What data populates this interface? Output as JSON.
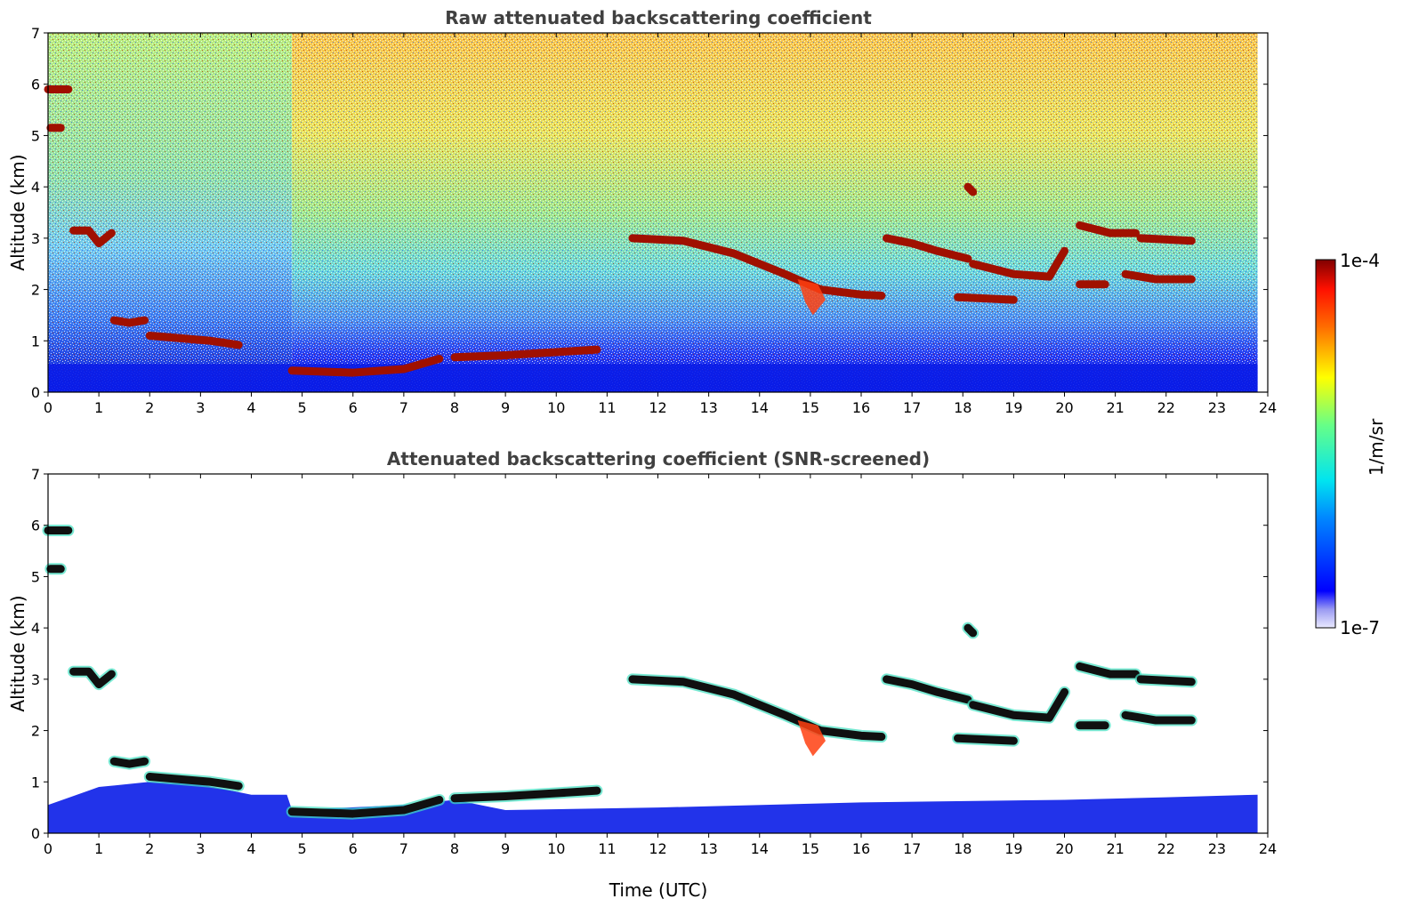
{
  "chart_data": [
    {
      "type": "heatmap",
      "title": "Raw attenuated backscattering coefficient",
      "xlabel": "",
      "ylabel": "Altitude (km)",
      "xlim": [
        0,
        24
      ],
      "ylim": [
        0,
        7
      ],
      "xticks": [
        0,
        1,
        2,
        3,
        4,
        5,
        6,
        7,
        8,
        9,
        10,
        11,
        12,
        13,
        14,
        15,
        16,
        17,
        18,
        19,
        20,
        21,
        22,
        23,
        24
      ],
      "yticks": [
        0,
        1,
        2,
        3,
        4,
        5,
        6,
        7
      ],
      "data_end_time": 23.8,
      "cloud_layers": [
        {
          "x": [
            0.0,
            0.4
          ],
          "y": [
            5.9,
            5.9
          ]
        },
        {
          "x": [
            0.05,
            0.25
          ],
          "y": [
            5.15,
            5.15
          ]
        },
        {
          "x": [
            0.5,
            0.8,
            1.0,
            1.25
          ],
          "y": [
            3.15,
            3.15,
            2.9,
            3.1
          ]
        },
        {
          "x": [
            1.3,
            1.6,
            1.9
          ],
          "y": [
            1.4,
            1.35,
            1.4
          ]
        },
        {
          "x": [
            2.0,
            2.6,
            3.2,
            3.75
          ],
          "y": [
            1.1,
            1.05,
            1.0,
            0.92
          ]
        },
        {
          "x": [
            4.8,
            6.0,
            7.0,
            7.7
          ],
          "y": [
            0.42,
            0.38,
            0.45,
            0.65
          ]
        },
        {
          "x": [
            8.0,
            9.0,
            10.0,
            10.8
          ],
          "y": [
            0.68,
            0.72,
            0.78,
            0.83
          ]
        },
        {
          "x": [
            11.5,
            12.5,
            13.5,
            14.5,
            15.2,
            16.0,
            16.4
          ],
          "y": [
            3.0,
            2.95,
            2.7,
            2.3,
            2.0,
            1.9,
            1.88
          ]
        },
        {
          "x": [
            16.5,
            17.0,
            17.5,
            18.1
          ],
          "y": [
            3.0,
            2.9,
            2.75,
            2.6
          ]
        },
        {
          "x": [
            18.2,
            19.0,
            19.7,
            20.0
          ],
          "y": [
            2.5,
            2.3,
            2.25,
            2.75
          ]
        },
        {
          "x": [
            20.3,
            20.9,
            21.4
          ],
          "y": [
            3.25,
            3.1,
            3.1
          ]
        },
        {
          "x": [
            21.5,
            22.5
          ],
          "y": [
            3.0,
            2.95
          ]
        },
        {
          "x": [
            21.2,
            21.8,
            22.5
          ],
          "y": [
            2.3,
            2.2,
            2.2
          ]
        },
        {
          "x": [
            20.3,
            20.8
          ],
          "y": [
            2.1,
            2.1
          ]
        },
        {
          "x": [
            17.9,
            19.0
          ],
          "y": [
            1.85,
            1.8
          ]
        },
        {
          "x": [
            18.1,
            18.2
          ],
          "y": [
            4.0,
            3.9
          ]
        }
      ]
    },
    {
      "type": "heatmap",
      "title": "Attenuated backscattering coefficient (SNR-screened)",
      "xlabel": "Time (UTC)",
      "ylabel": "Altitude (km)",
      "xlim": [
        0,
        24
      ],
      "ylim": [
        0,
        7
      ],
      "xticks": [
        0,
        1,
        2,
        3,
        4,
        5,
        6,
        7,
        8,
        9,
        10,
        11,
        12,
        13,
        14,
        15,
        16,
        17,
        18,
        19,
        20,
        21,
        22,
        23,
        24
      ],
      "yticks": [
        0,
        1,
        2,
        3,
        4,
        5,
        6,
        7
      ]
    }
  ],
  "colorbar": {
    "label": "1/m/sr",
    "max_label": "1e-4",
    "min_label": "1e-7",
    "scale": "log",
    "colormap": "jet"
  },
  "colors": {
    "cloud": "#a01000",
    "boundary_layer": "#0a1de8",
    "title": "#404040"
  }
}
